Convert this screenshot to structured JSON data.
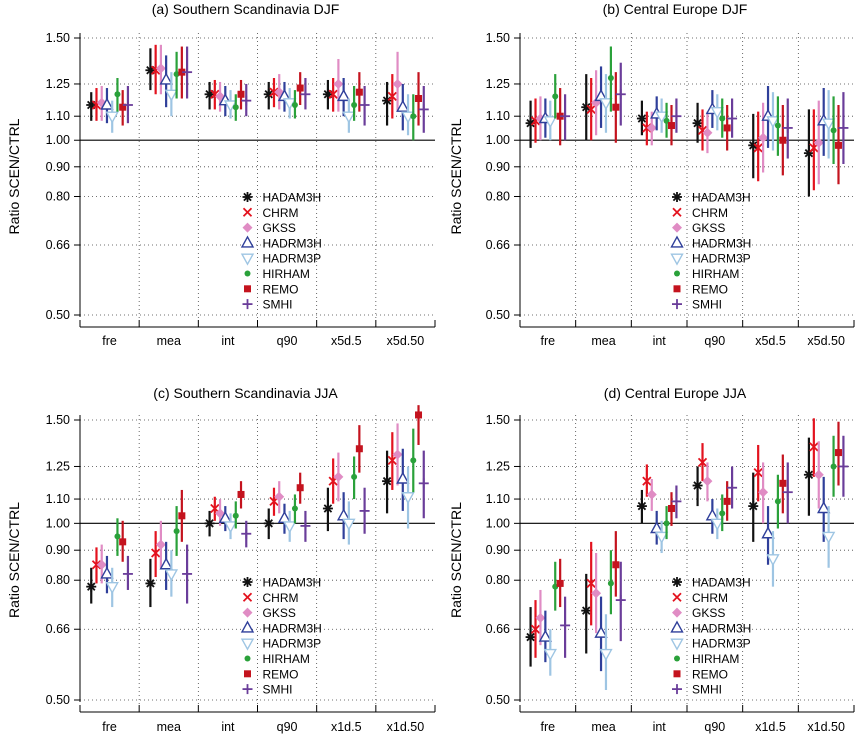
{
  "figure": {
    "ylabel": "Ratio SCEN/CTRL",
    "ytick_labels": [
      "0.50",
      "0.66",
      "0.80",
      "0.90",
      "1.00",
      "1.10",
      "1.25",
      "1.50"
    ],
    "ytick_values": [
      0.5,
      0.66,
      0.8,
      0.9,
      1.0,
      1.1,
      1.25,
      1.5
    ],
    "yscale": "log",
    "ylim": [
      0.5,
      1.5
    ],
    "reference_line": 1.0,
    "grid": "dotted",
    "legend_position": "bottom-center"
  },
  "models": [
    {
      "name": "HADAM3H",
      "color": "#111111",
      "marker": "asterisk"
    },
    {
      "name": "CHRM",
      "color": "#e3121e",
      "marker": "x"
    },
    {
      "name": "GKSS",
      "color": "#e08cc4",
      "marker": "diamond"
    },
    {
      "name": "HADRM3H",
      "color": "#2f3f9a",
      "marker": "triangle-up"
    },
    {
      "name": "HADRM3P",
      "color": "#9ec5e3",
      "marker": "triangle-down"
    },
    {
      "name": "HIRHAM",
      "color": "#2aa13a",
      "marker": "dot"
    },
    {
      "name": "REMO",
      "color": "#c4131e",
      "marker": "square"
    },
    {
      "name": "SMHI",
      "color": "#6a3d9a",
      "marker": "plus"
    }
  ],
  "chart_data": [
    {
      "type": "scatter",
      "title": "(a) Southern Scandinavia  DJF",
      "ylabel": "Ratio SCEN/CTRL",
      "categories": [
        "fre",
        "mea",
        "int",
        "q90",
        "x5d.5",
        "x5d.50"
      ],
      "ylim": [
        0.5,
        1.5
      ],
      "series": [
        {
          "name": "HADAM3H",
          "values": [
            1.15,
            1.32,
            1.2,
            1.2,
            1.2,
            1.17
          ],
          "low": [
            1.08,
            1.22,
            1.13,
            1.13,
            1.13,
            1.06
          ],
          "high": [
            1.21,
            1.44,
            1.26,
            1.26,
            1.27,
            1.26
          ]
        },
        {
          "name": "CHRM",
          "values": [
            1.15,
            1.32,
            1.2,
            1.21,
            1.2,
            1.19
          ],
          "low": [
            1.08,
            1.2,
            1.13,
            1.14,
            1.12,
            1.09
          ],
          "high": [
            1.23,
            1.46,
            1.27,
            1.28,
            1.28,
            1.3
          ]
        },
        {
          "name": "GKSS",
          "values": [
            1.16,
            1.33,
            1.19,
            1.21,
            1.25,
            1.25
          ],
          "low": [
            1.08,
            1.2,
            1.12,
            1.13,
            1.12,
            1.12
          ],
          "high": [
            1.24,
            1.46,
            1.26,
            1.3,
            1.38,
            1.42
          ]
        },
        {
          "name": "HADRM3H",
          "values": [
            1.15,
            1.27,
            1.17,
            1.19,
            1.19,
            1.14
          ],
          "low": [
            1.07,
            1.14,
            1.1,
            1.12,
            1.1,
            1.04
          ],
          "high": [
            1.23,
            1.4,
            1.24,
            1.26,
            1.28,
            1.25
          ]
        },
        {
          "name": "HADRM3P",
          "values": [
            1.1,
            1.2,
            1.15,
            1.16,
            1.1,
            1.1
          ],
          "low": [
            1.03,
            1.1,
            1.09,
            1.09,
            1.03,
            1.02
          ],
          "high": [
            1.17,
            1.31,
            1.22,
            1.23,
            1.18,
            1.2
          ]
        },
        {
          "name": "HIRHAM",
          "values": [
            1.2,
            1.3,
            1.14,
            1.15,
            1.15,
            1.1
          ],
          "low": [
            1.12,
            1.18,
            1.08,
            1.09,
            1.08,
            1.0
          ],
          "high": [
            1.28,
            1.42,
            1.2,
            1.22,
            1.24,
            1.2
          ]
        },
        {
          "name": "REMO",
          "values": [
            1.14,
            1.31,
            1.2,
            1.23,
            1.21,
            1.18
          ],
          "low": [
            1.06,
            1.18,
            1.13,
            1.15,
            1.12,
            1.06
          ],
          "high": [
            1.22,
            1.45,
            1.27,
            1.31,
            1.31,
            1.31
          ]
        },
        {
          "name": "SMHI",
          "values": [
            1.15,
            1.31,
            1.17,
            1.2,
            1.15,
            1.13
          ],
          "low": [
            1.07,
            1.18,
            1.1,
            1.13,
            1.06,
            1.03
          ],
          "high": [
            1.24,
            1.45,
            1.25,
            1.28,
            1.24,
            1.24
          ]
        }
      ]
    },
    {
      "type": "scatter",
      "title": "(b) Central Europe  DJF",
      "ylabel": "Ratio SCEN/CTRL",
      "categories": [
        "fre",
        "mea",
        "int",
        "q90",
        "x5d.5",
        "x5d.50"
      ],
      "ylim": [
        0.5,
        1.5
      ],
      "series": [
        {
          "name": "HADAM3H",
          "values": [
            1.07,
            1.14,
            1.09,
            1.07,
            0.98,
            0.95
          ],
          "low": [
            0.97,
            1.0,
            1.02,
            0.99,
            0.86,
            0.8
          ],
          "high": [
            1.17,
            1.3,
            1.17,
            1.16,
            1.11,
            1.13
          ]
        },
        {
          "name": "CHRM",
          "values": [
            1.08,
            1.13,
            1.05,
            1.04,
            0.97,
            0.97
          ],
          "low": [
            0.99,
            1.0,
            0.98,
            0.96,
            0.85,
            0.82
          ],
          "high": [
            1.18,
            1.28,
            1.12,
            1.13,
            1.12,
            1.13
          ]
        },
        {
          "name": "GKSS",
          "values": [
            1.09,
            1.16,
            1.05,
            1.03,
            1.01,
            0.99
          ],
          "low": [
            1.0,
            1.02,
            0.98,
            0.95,
            0.88,
            0.84
          ],
          "high": [
            1.19,
            1.32,
            1.12,
            1.12,
            1.16,
            1.17
          ]
        },
        {
          "name": "HADRM3H",
          "values": [
            1.09,
            1.19,
            1.11,
            1.13,
            1.1,
            1.08
          ],
          "low": [
            1.01,
            1.05,
            1.04,
            1.05,
            0.97,
            0.94
          ],
          "high": [
            1.18,
            1.34,
            1.19,
            1.22,
            1.24,
            1.23
          ]
        },
        {
          "name": "HADRM3P",
          "values": [
            1.08,
            1.16,
            1.1,
            1.12,
            1.08,
            1.07
          ],
          "low": [
            1.0,
            1.03,
            1.03,
            1.04,
            0.96,
            0.93
          ],
          "high": [
            1.17,
            1.3,
            1.18,
            1.2,
            1.21,
            1.22
          ]
        },
        {
          "name": "HIRHAM",
          "values": [
            1.19,
            1.28,
            1.08,
            1.09,
            1.06,
            1.04
          ],
          "low": [
            1.09,
            1.12,
            1.01,
            1.01,
            0.94,
            0.91
          ],
          "high": [
            1.3,
            1.45,
            1.16,
            1.18,
            1.19,
            1.19
          ]
        },
        {
          "name": "REMO",
          "values": [
            1.1,
            1.14,
            1.06,
            1.05,
            1.0,
            0.98
          ],
          "low": [
            0.98,
            0.99,
            0.98,
            0.96,
            0.87,
            0.84
          ],
          "high": [
            1.23,
            1.31,
            1.15,
            1.15,
            1.15,
            1.15
          ]
        },
        {
          "name": "SMHI",
          "values": [
            1.1,
            1.2,
            1.1,
            1.09,
            1.05,
            1.05
          ],
          "low": [
            1.0,
            1.06,
            1.03,
            1.01,
            0.93,
            0.91
          ],
          "high": [
            1.2,
            1.36,
            1.18,
            1.18,
            1.18,
            1.21
          ]
        }
      ]
    },
    {
      "type": "scatter",
      "title": "(c) Southern Scandinavia  JJA",
      "ylabel": "Ratio SCEN/CTRL",
      "categories": [
        "fre",
        "mea",
        "int",
        "q90",
        "x1d.5",
        "x1d.50"
      ],
      "ylim": [
        0.5,
        1.5
      ],
      "series": [
        {
          "name": "HADAM3H",
          "values": [
            0.78,
            0.79,
            1.0,
            1.0,
            1.06,
            1.18
          ],
          "low": [
            0.73,
            0.72,
            0.95,
            0.94,
            0.97,
            1.04
          ],
          "high": [
            0.84,
            0.87,
            1.05,
            1.06,
            1.15,
            1.33
          ]
        },
        {
          "name": "CHRM",
          "values": [
            0.85,
            0.89,
            1.06,
            1.09,
            1.18,
            1.28
          ],
          "low": [
            0.79,
            0.81,
            1.01,
            1.03,
            1.08,
            1.14
          ],
          "high": [
            0.91,
            0.97,
            1.11,
            1.15,
            1.29,
            1.43
          ]
        },
        {
          "name": "GKSS",
          "values": [
            0.85,
            0.92,
            1.04,
            1.11,
            1.2,
            1.31
          ],
          "low": [
            0.79,
            0.84,
            0.99,
            1.04,
            1.09,
            1.16
          ],
          "high": [
            0.92,
            1.01,
            1.1,
            1.18,
            1.32,
            1.48
          ]
        },
        {
          "name": "HADRM3H",
          "values": [
            0.82,
            0.85,
            1.02,
            1.02,
            1.03,
            1.19
          ],
          "low": [
            0.76,
            0.77,
            0.97,
            0.96,
            0.94,
            1.05
          ],
          "high": [
            0.88,
            0.93,
            1.07,
            1.08,
            1.13,
            1.34
          ]
        },
        {
          "name": "HADRM3P",
          "values": [
            0.78,
            0.82,
            0.99,
            0.99,
            1.0,
            1.11
          ],
          "low": [
            0.72,
            0.75,
            0.94,
            0.93,
            0.92,
            0.98
          ],
          "high": [
            0.84,
            0.9,
            1.04,
            1.05,
            1.09,
            1.25
          ]
        },
        {
          "name": "HIRHAM",
          "values": [
            0.95,
            0.97,
            1.03,
            1.06,
            1.2,
            1.28
          ],
          "low": [
            0.88,
            0.88,
            0.98,
            1.0,
            1.1,
            1.13
          ],
          "high": [
            1.02,
            1.07,
            1.09,
            1.12,
            1.3,
            1.45
          ]
        },
        {
          "name": "REMO",
          "values": [
            0.93,
            1.03,
            1.12,
            1.15,
            1.34,
            1.53
          ],
          "low": [
            0.86,
            0.93,
            1.06,
            1.08,
            1.22,
            1.36
          ],
          "high": [
            1.01,
            1.14,
            1.18,
            1.22,
            1.47,
            1.6
          ]
        },
        {
          "name": "SMHI",
          "values": [
            0.82,
            0.82,
            0.96,
            0.99,
            1.05,
            1.17
          ],
          "low": [
            0.77,
            0.73,
            0.91,
            0.93,
            0.96,
            1.02
          ],
          "high": [
            0.88,
            0.92,
            1.01,
            1.05,
            1.15,
            1.33
          ]
        }
      ]
    },
    {
      "type": "scatter",
      "title": "(d) Central Europe  JJA",
      "ylabel": "Ratio SCEN/CTRL",
      "categories": [
        "fre",
        "mea",
        "int",
        "q90",
        "x1d.5",
        "x1d.50"
      ],
      "ylim": [
        0.5,
        1.5
      ],
      "series": [
        {
          "name": "HADAM3H",
          "values": [
            0.64,
            0.71,
            1.07,
            1.16,
            1.07,
            1.21
          ],
          "low": [
            0.57,
            0.6,
            1.0,
            1.07,
            0.93,
            1.03
          ],
          "high": [
            0.72,
            0.82,
            1.14,
            1.25,
            1.22,
            1.4
          ]
        },
        {
          "name": "CHRM",
          "values": [
            0.66,
            0.79,
            1.18,
            1.27,
            1.22,
            1.35
          ],
          "low": [
            0.59,
            0.67,
            1.11,
            1.18,
            1.09,
            1.2
          ],
          "high": [
            0.74,
            0.93,
            1.26,
            1.37,
            1.36,
            1.51
          ]
        },
        {
          "name": "GKSS",
          "values": [
            0.69,
            0.76,
            1.12,
            1.18,
            1.13,
            1.21
          ],
          "low": [
            0.62,
            0.65,
            1.05,
            1.09,
            1.0,
            1.06
          ],
          "high": [
            0.77,
            0.89,
            1.19,
            1.27,
            1.27,
            1.38
          ]
        },
        {
          "name": "HADRM3H",
          "values": [
            0.64,
            0.65,
            0.98,
            1.03,
            0.96,
            1.06
          ],
          "low": [
            0.58,
            0.56,
            0.92,
            0.96,
            0.85,
            0.93
          ],
          "high": [
            0.71,
            0.75,
            1.05,
            1.1,
            1.07,
            1.2
          ]
        },
        {
          "name": "HADRM3P",
          "values": [
            0.6,
            0.6,
            0.95,
            1.0,
            0.87,
            0.95
          ],
          "low": [
            0.55,
            0.52,
            0.89,
            0.94,
            0.78,
            0.84
          ],
          "high": [
            0.66,
            0.7,
            1.01,
            1.06,
            0.97,
            1.07
          ]
        },
        {
          "name": "HIRHAM",
          "values": [
            0.78,
            0.79,
            1.0,
            1.04,
            1.09,
            1.25
          ],
          "low": [
            0.71,
            0.7,
            0.94,
            0.97,
            0.98,
            1.11
          ],
          "high": [
            0.86,
            0.9,
            1.07,
            1.12,
            1.21,
            1.41
          ]
        },
        {
          "name": "REMO",
          "values": [
            0.79,
            0.85,
            1.06,
            1.09,
            1.17,
            1.32
          ],
          "low": [
            0.72,
            0.75,
            0.99,
            1.01,
            1.04,
            1.16
          ],
          "high": [
            0.87,
            0.97,
            1.13,
            1.18,
            1.31,
            1.49
          ]
        },
        {
          "name": "SMHI",
          "values": [
            0.67,
            0.74,
            1.09,
            1.15,
            1.13,
            1.25
          ],
          "low": [
            0.59,
            0.63,
            1.02,
            1.06,
            1.0,
            1.11
          ],
          "high": [
            0.75,
            0.86,
            1.16,
            1.25,
            1.27,
            1.41
          ]
        }
      ]
    }
  ]
}
